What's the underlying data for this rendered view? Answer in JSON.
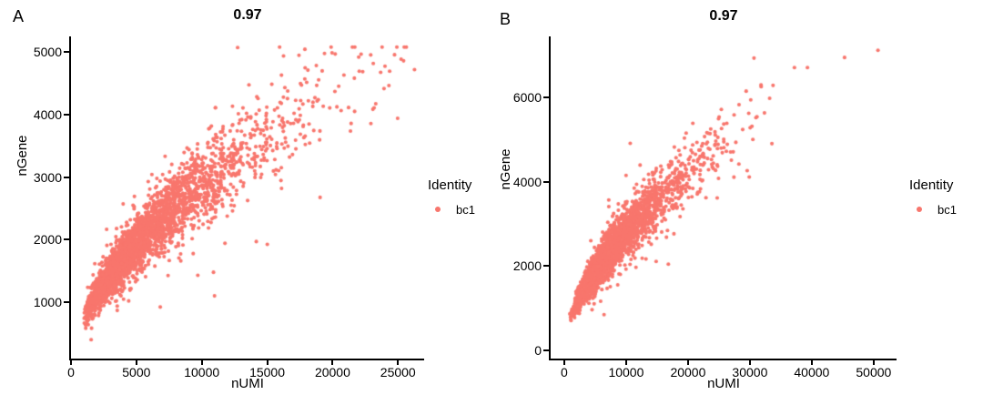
{
  "figure": {
    "background": "#ffffff",
    "axis_color": "#000000",
    "text_color": "#000000",
    "point_color": "#F8766D"
  },
  "chart_data": [
    {
      "type": "scatter",
      "panel_label": "A",
      "title": "0.97",
      "correlation_shown": 0.97,
      "xlabel": "nUMI",
      "ylabel": "nGene",
      "xlim": [
        0,
        27000
      ],
      "ylim": [
        100,
        5250
      ],
      "x_ticks": [
        0,
        5000,
        10000,
        15000,
        20000,
        25000
      ],
      "y_ticks": [
        1000,
        2000,
        3000,
        4000,
        5000
      ],
      "grid": false,
      "legend": {
        "title": "Identity",
        "position": "right",
        "items": [
          {
            "label": "bc1",
            "color": "#F8766D"
          }
        ]
      },
      "point_color": "#F8766D",
      "point_radius_px": 2.05,
      "n_points": 3200,
      "trend": "Dense saturating power-law band rising from (~1000, ~400) to (~26000, ~5000); densest cluster at low nUMI (1000-5000), scattered outliers below the band",
      "model": {
        "x_distribution": "lognormal",
        "x_log_mean": 8.517,
        "x_log_sd": 0.66,
        "x_range": [
          1000,
          26500
        ],
        "y_curve_max": 5000,
        "x_at_curve_max": 26000,
        "exponent": 0.58,
        "noise_sd_rel": 0.11,
        "noise_wide_frac": 0.06,
        "noise_wide_mult": 2.2,
        "y_range": [
          260,
          5080
        ],
        "seed": 12
      },
      "extra_points": []
    },
    {
      "type": "scatter",
      "panel_label": "B",
      "title": "0.97",
      "correlation_shown": 0.97,
      "xlabel": "nUMI",
      "ylabel": "nGene",
      "xlim": [
        -2200,
        53700
      ],
      "ylim": [
        -200,
        7450
      ],
      "x_ticks": [
        0,
        10000,
        20000,
        30000,
        40000,
        50000
      ],
      "y_ticks": [
        0,
        2000,
        4000,
        6000
      ],
      "grid": false,
      "legend": {
        "title": "Identity",
        "position": "right",
        "items": [
          {
            "label": "bc1",
            "color": "#F8766D"
          }
        ]
      },
      "point_color": "#F8766D",
      "point_radius_px": 2.05,
      "n_points": 3200,
      "trend": "Dense saturating band from (~500, ~200) to (~30000, ~6000); very dense streak near the origin; a few isolated points out to (~51000, ~7100)",
      "model": {
        "x_distribution": "lognormal",
        "x_log_mean": 8.854,
        "x_log_sd": 0.6,
        "x_range": [
          500,
          34000
        ],
        "y_curve_max": 7200,
        "x_at_curve_max": 51000,
        "exponent": 0.58,
        "noise_sd_rel": 0.1,
        "noise_wide_frac": 0.05,
        "noise_wide_mult": 2.0,
        "y_range": [
          150,
          7300
        ],
        "seed": 99
      },
      "extra_points": [
        [
          29400,
          6150
        ],
        [
          31800,
          6300
        ],
        [
          37200,
          6710
        ],
        [
          39300,
          6710
        ],
        [
          45300,
          6950
        ],
        [
          50700,
          7120
        ]
      ]
    }
  ]
}
